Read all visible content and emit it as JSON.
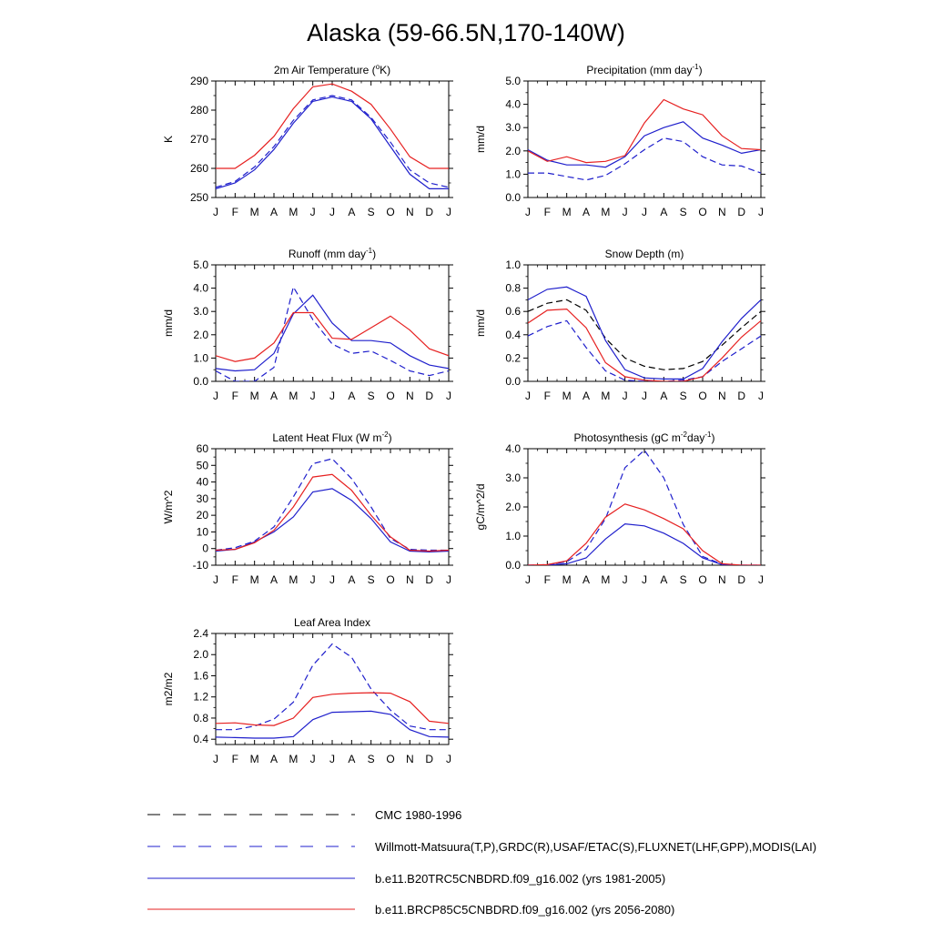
{
  "title": "Alaska (59-66.5N,170-140W)",
  "months": [
    "J",
    "F",
    "M",
    "A",
    "M",
    "J",
    "J",
    "A",
    "S",
    "O",
    "N",
    "D",
    "J"
  ],
  "colors": {
    "cmc": "#000000",
    "obs": "#1f1fcc",
    "b20": "#1f1fcc",
    "brcp": "#e62020"
  },
  "legend": [
    {
      "key": "cmc",
      "label": "CMC 1980-1996",
      "style": "dashed"
    },
    {
      "key": "obs",
      "label": "Willmott-Matsuura(T,P),GRDC(R),USAF/ETAC(S),FLUXNET(LHF,GPP),MODIS(LAI)",
      "style": "dashed"
    },
    {
      "key": "b20",
      "label": "b.e11.B20TRC5CNBDRD.f09_g16.002 (yrs 1981-2005)",
      "style": "solid"
    },
    {
      "key": "brcp",
      "label": "b.e11.BRCP85C5CNBDRD.f09_g16.002 (yrs 2056-2080)",
      "style": "solid"
    }
  ],
  "chart_data": [
    {
      "type": "line",
      "title_parts": [
        "2m Air Temperature (",
        "o",
        "K)"
      ],
      "title_sup_index": 1,
      "ylabel": "K",
      "ylim": [
        250,
        290
      ],
      "yticks": [
        250,
        260,
        270,
        280,
        290
      ],
      "ytick_labels": [
        "250",
        "260",
        "270",
        "280",
        "290"
      ],
      "series": [
        {
          "key": "obs",
          "dashed": true,
          "values": [
            253.5,
            255.5,
            260.5,
            267.5,
            276.5,
            283.5,
            285,
            283.5,
            277.5,
            269,
            259.5,
            255,
            253.5
          ]
        },
        {
          "key": "b20",
          "dashed": false,
          "values": [
            253,
            255,
            259.5,
            266.5,
            275.5,
            283,
            284.5,
            283,
            277,
            267.5,
            258,
            253,
            253
          ]
        },
        {
          "key": "brcp",
          "dashed": false,
          "values": [
            260,
            260,
            264.5,
            271,
            280.5,
            288,
            289,
            286.5,
            282,
            273.5,
            264,
            260,
            260
          ]
        }
      ]
    },
    {
      "type": "line",
      "title_parts": [
        "Precipitation (mm day",
        "-1",
        ")"
      ],
      "title_sup_index": 1,
      "ylabel": "mm/d",
      "ylim": [
        0,
        5
      ],
      "yticks": [
        0,
        1,
        2,
        3,
        4,
        5
      ],
      "ytick_labels": [
        "0.0",
        "1.0",
        "2.0",
        "3.0",
        "4.0",
        "5.0"
      ],
      "series": [
        {
          "key": "obs",
          "dashed": true,
          "values": [
            1.05,
            1.05,
            0.9,
            0.75,
            0.95,
            1.45,
            2.05,
            2.55,
            2.4,
            1.75,
            1.4,
            1.35,
            1.05
          ]
        },
        {
          "key": "b20",
          "dashed": false,
          "values": [
            2.05,
            1.6,
            1.4,
            1.4,
            1.3,
            1.75,
            2.65,
            3.0,
            3.25,
            2.55,
            2.25,
            1.9,
            2.05
          ]
        },
        {
          "key": "brcp",
          "dashed": false,
          "values": [
            2.0,
            1.55,
            1.75,
            1.5,
            1.55,
            1.8,
            3.2,
            4.2,
            3.8,
            3.55,
            2.65,
            2.1,
            2.05
          ]
        }
      ]
    },
    {
      "type": "line",
      "title_parts": [
        "Runoff (mm day",
        "-1",
        ")"
      ],
      "title_sup_index": 1,
      "ylabel": "mm/d",
      "ylim": [
        0,
        5
      ],
      "yticks": [
        0,
        1,
        2,
        3,
        4,
        5
      ],
      "ytick_labels": [
        "0.0",
        "1.0",
        "2.0",
        "3.0",
        "4.0",
        "5.0"
      ],
      "series": [
        {
          "key": "obs",
          "dashed": true,
          "values": [
            0.45,
            0.0,
            0.0,
            0.6,
            4.05,
            2.65,
            1.6,
            1.2,
            1.3,
            0.9,
            0.45,
            0.25,
            0.45
          ]
        },
        {
          "key": "b20",
          "dashed": false,
          "values": [
            0.55,
            0.45,
            0.5,
            1.2,
            2.9,
            3.7,
            2.5,
            1.75,
            1.75,
            1.65,
            1.1,
            0.7,
            0.55
          ]
        },
        {
          "key": "brcp",
          "dashed": false,
          "values": [
            1.1,
            0.85,
            1.0,
            1.65,
            2.95,
            2.95,
            1.85,
            1.8,
            2.3,
            2.8,
            2.2,
            1.4,
            1.1
          ]
        }
      ]
    },
    {
      "type": "line",
      "title_parts": [
        "Snow Depth (m)"
      ],
      "title_sup_index": -1,
      "ylabel": "mm/d",
      "ylim": [
        0,
        1
      ],
      "yticks": [
        0,
        0.2,
        0.4,
        0.6,
        0.8,
        1.0
      ],
      "ytick_labels": [
        "0.0",
        "0.2",
        "0.4",
        "0.6",
        "0.8",
        "1.0"
      ],
      "series": [
        {
          "key": "cmc",
          "dashed": true,
          "values": [
            0.6,
            0.67,
            0.7,
            0.61,
            0.37,
            0.2,
            0.13,
            0.1,
            0.11,
            0.17,
            0.31,
            0.46,
            0.6
          ]
        },
        {
          "key": "obs",
          "dashed": true,
          "values": [
            0.39,
            0.47,
            0.52,
            0.29,
            0.09,
            0.01,
            0.0,
            0.0,
            0.01,
            0.04,
            0.17,
            0.28,
            0.39
          ]
        },
        {
          "key": "b20",
          "dashed": false,
          "values": [
            0.7,
            0.79,
            0.81,
            0.73,
            0.35,
            0.1,
            0.03,
            0.02,
            0.02,
            0.11,
            0.34,
            0.54,
            0.7
          ]
        },
        {
          "key": "brcp",
          "dashed": false,
          "values": [
            0.5,
            0.61,
            0.62,
            0.46,
            0.16,
            0.04,
            0.01,
            0.0,
            0.0,
            0.04,
            0.2,
            0.38,
            0.52
          ]
        }
      ]
    },
    {
      "type": "line",
      "title_parts": [
        "Latent Heat Flux (W m",
        "-2",
        ")"
      ],
      "title_sup_index": 1,
      "ylabel": "W/m^2",
      "ylim": [
        -10,
        60
      ],
      "yticks": [
        -10,
        0,
        10,
        20,
        30,
        40,
        50,
        60
      ],
      "ytick_labels": [
        "-10",
        "0",
        "10",
        "20",
        "30",
        "40",
        "50",
        "60"
      ],
      "series": [
        {
          "key": "obs",
          "dashed": true,
          "values": [
            -1,
            0.5,
            4.5,
            13,
            31,
            51,
            54,
            42,
            25,
            6,
            -0.5,
            -1,
            -1
          ]
        },
        {
          "key": "b20",
          "dashed": false,
          "values": [
            -1.5,
            -0.5,
            4,
            10,
            19,
            34,
            36,
            29,
            18,
            4,
            -1.5,
            -2,
            -1.5
          ]
        },
        {
          "key": "brcp",
          "dashed": false,
          "values": [
            -1,
            -0.5,
            3.5,
            11,
            25,
            43,
            44.5,
            35,
            20,
            7,
            -1,
            -1.5,
            -1
          ]
        }
      ]
    },
    {
      "type": "line",
      "title_parts": [
        "Photosynthesis (gC m",
        "-2",
        "day",
        "-1",
        ")"
      ],
      "title_sup_index": 1,
      "title_sup_index2": 3,
      "ylabel": "gC/m^2/d",
      "ylim": [
        0,
        4
      ],
      "yticks": [
        0,
        1,
        2,
        3,
        4
      ],
      "ytick_labels": [
        "0.0",
        "1.0",
        "2.0",
        "3.0",
        "4.0"
      ],
      "series": [
        {
          "key": "obs",
          "dashed": true,
          "values": [
            0.0,
            0.02,
            0.12,
            0.55,
            1.6,
            3.35,
            3.95,
            3.0,
            1.4,
            0.3,
            0.03,
            0.0,
            0.0
          ]
        },
        {
          "key": "b20",
          "dashed": false,
          "values": [
            0.0,
            0.0,
            0.05,
            0.25,
            0.9,
            1.42,
            1.35,
            1.1,
            0.75,
            0.25,
            0.02,
            0.0,
            0.0
          ]
        },
        {
          "key": "brcp",
          "dashed": false,
          "values": [
            0.0,
            0.02,
            0.15,
            0.75,
            1.65,
            2.1,
            1.9,
            1.6,
            1.25,
            0.5,
            0.05,
            0.0,
            0.0
          ]
        }
      ]
    },
    {
      "type": "line",
      "title_parts": [
        "Leaf Area Index"
      ],
      "title_sup_index": -1,
      "ylabel": "m2/m2",
      "ylim": [
        0.3,
        2.4
      ],
      "yticks": [
        0.4,
        0.8,
        1.2,
        1.6,
        2.0,
        2.4
      ],
      "ytick_labels": [
        "0.4",
        "0.8",
        "1.2",
        "1.6",
        "2.0",
        "2.4"
      ],
      "series": [
        {
          "key": "obs",
          "dashed": true,
          "values": [
            0.58,
            0.58,
            0.65,
            0.78,
            1.1,
            1.8,
            2.2,
            1.95,
            1.35,
            0.95,
            0.65,
            0.58,
            0.58
          ]
        },
        {
          "key": "b20",
          "dashed": false,
          "values": [
            0.44,
            0.43,
            0.42,
            0.42,
            0.45,
            0.77,
            0.91,
            0.92,
            0.93,
            0.87,
            0.58,
            0.45,
            0.44
          ]
        },
        {
          "key": "brcp",
          "dashed": false,
          "values": [
            0.7,
            0.71,
            0.67,
            0.66,
            0.8,
            1.19,
            1.25,
            1.27,
            1.28,
            1.27,
            1.11,
            0.74,
            0.7
          ]
        }
      ]
    }
  ]
}
